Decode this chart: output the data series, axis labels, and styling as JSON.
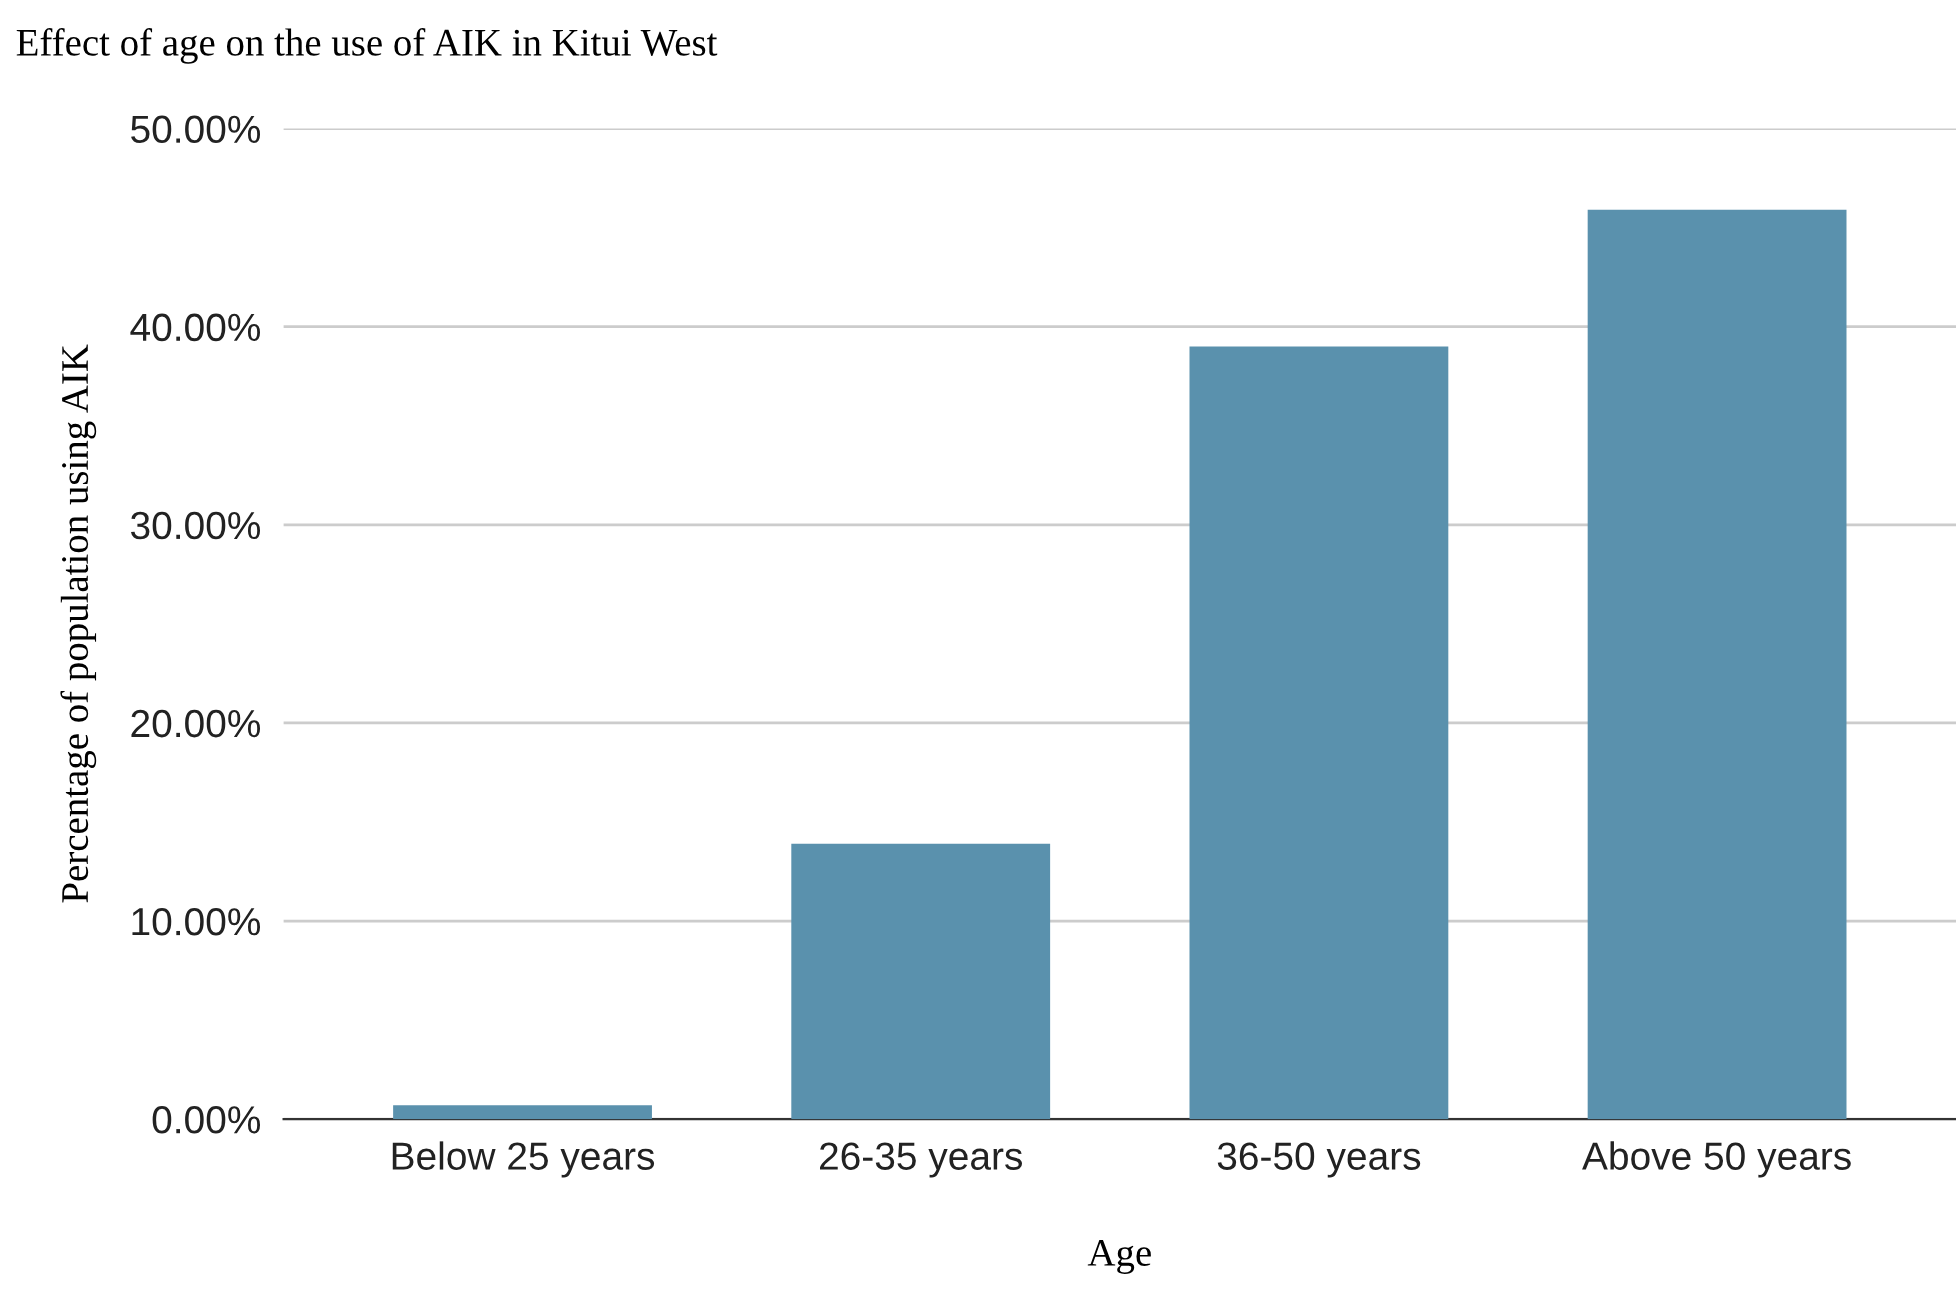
{
  "chart_data": {
    "type": "bar",
    "title": "Effect of age on the use of AIK in Kitui West",
    "xlabel": "Age",
    "ylabel": "Percentage of population using AIK",
    "categories": [
      "Below 25 years",
      "26-35 years",
      "36-50 years",
      "Above 50 years"
    ],
    "values": [
      0.7,
      13.9,
      39.0,
      45.9
    ],
    "color": "#5a91ad",
    "ylim": [
      0,
      50
    ],
    "yticks": [
      {
        "value": 0,
        "label": "0.00%"
      },
      {
        "value": 10,
        "label": "10.00%"
      },
      {
        "value": 20,
        "label": "20.00%"
      },
      {
        "value": 30,
        "label": "30.00%"
      },
      {
        "value": 40,
        "label": "40.00%"
      },
      {
        "value": 50,
        "label": "50.00%"
      }
    ],
    "grid": "y"
  }
}
